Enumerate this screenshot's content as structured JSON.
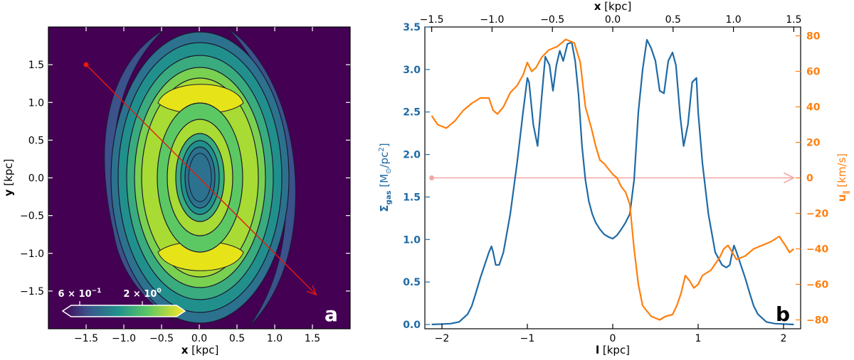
{
  "chart_data": [
    {
      "panel": "a",
      "type": "heatmap",
      "xlabel_var": "x",
      "xlabel_unit": " [kpc]",
      "ylabel_var": "y",
      "ylabel_unit": " [kpc]",
      "xlim": [
        -2.0,
        2.0
      ],
      "ylim": [
        -2.0,
        2.0
      ],
      "xticks": [
        -1.5,
        -1.0,
        -0.5,
        0.0,
        0.5,
        1.0,
        1.5
      ],
      "xticklabels": [
        "−1.5",
        "−1.0",
        "−0.5",
        "0.0",
        "0.5",
        "1.0",
        "1.5"
      ],
      "yticks": [
        1.5,
        1.0,
        0.5,
        0.0,
        -0.5,
        -1.0,
        -1.5
      ],
      "yticklabels": [
        "1.5",
        "1.0",
        "0.5",
        "0.0",
        "−0.5",
        "−1.0",
        "−1.5"
      ],
      "colorbar": {
        "colormap": "viridis",
        "scale": "log",
        "extend": "both",
        "ticks": [
          0.6,
          2.0
        ],
        "ticklabels": [
          {
            "base": "6 × 10",
            "exp": "−1"
          },
          {
            "base": "2 × 10",
            "exp": "0"
          }
        ]
      },
      "arrow": {
        "from": [
          -1.5,
          1.5
        ],
        "to": [
          1.55,
          -1.55
        ],
        "color": "#e8170f"
      },
      "panel_label": "a"
    },
    {
      "panel": "b",
      "type": "line",
      "xlabel": "l",
      "xlabel_unit": " [kpc]",
      "top_xlabel": "x",
      "top_xlabel_unit": " [kpc]",
      "xlim": [
        -2.2,
        2.2
      ],
      "xticks": [
        -2,
        -1,
        0,
        1,
        2
      ],
      "xticklabels": [
        "−2",
        "−1",
        "0",
        "1",
        "2"
      ],
      "top_xticks": [
        -1.5,
        -1.0,
        -0.5,
        0.0,
        0.5,
        1.0,
        1.5
      ],
      "top_xticklabels": [
        "−1.5",
        "−1.0",
        "−0.5",
        "0.0",
        "0.5",
        "1.0",
        "1.5"
      ],
      "left_ylabel_symbol": "Σ",
      "left_ylabel_sub": "gas",
      "left_ylabel_unit_a": " [M",
      "left_ylabel_unit_b": "⊙",
      "left_ylabel_unit_c": "/pc",
      "left_ylabel_unit_d": "2",
      "left_ylabel_unit_e": "]",
      "left_ylim": [
        -0.05,
        3.5
      ],
      "left_yticks": [
        0.0,
        0.5,
        1.0,
        1.5,
        2.0,
        2.5,
        3.0,
        3.5
      ],
      "left_yticklabels": [
        "0.0",
        "0.5",
        "1.0",
        "1.5",
        "2.0",
        "2.5",
        "3.0",
        "3.5"
      ],
      "right_ylabel_symbol": "u",
      "right_ylabel_sub": "∥",
      "right_ylabel_unit": " [km/s]",
      "right_ylim": [
        -85,
        85
      ],
      "right_yticks": [
        -80,
        -60,
        -40,
        -20,
        0,
        20,
        40,
        60,
        80
      ],
      "right_yticklabels": [
        "−80",
        "−60",
        "−40",
        "−20",
        "0",
        "20",
        "40",
        "60",
        "80"
      ],
      "series": [
        {
          "axis": "left",
          "color": "#1f6aa5",
          "x": [
            -2.12,
            -1.9,
            -1.8,
            -1.7,
            -1.65,
            -1.6,
            -1.55,
            -1.5,
            -1.45,
            -1.42,
            -1.4,
            -1.37,
            -1.33,
            -1.28,
            -1.2,
            -1.12,
            -1.05,
            -1.0,
            -0.98,
            -0.93,
            -0.88,
            -0.83,
            -0.79,
            -0.74,
            -0.7,
            -0.66,
            -0.62,
            -0.58,
            -0.53,
            -0.48,
            -0.44,
            -0.4,
            -0.36,
            -0.32,
            -0.28,
            -0.24,
            -0.2,
            -0.15,
            -0.1,
            -0.05,
            0.0,
            0.05,
            0.1,
            0.15,
            0.2,
            0.25,
            0.3,
            0.35,
            0.4,
            0.45,
            0.5,
            0.55,
            0.6,
            0.65,
            0.7,
            0.74,
            0.79,
            0.83,
            0.88,
            0.93,
            0.98,
            1.0,
            1.05,
            1.12,
            1.2,
            1.28,
            1.33,
            1.37,
            1.4,
            1.42,
            1.45,
            1.5,
            1.55,
            1.6,
            1.65,
            1.7,
            1.8,
            1.9,
            2.12
          ],
          "y": [
            0.0,
            0.01,
            0.03,
            0.12,
            0.22,
            0.38,
            0.55,
            0.7,
            0.85,
            0.92,
            0.85,
            0.7,
            0.7,
            0.85,
            1.3,
            1.9,
            2.5,
            2.9,
            2.85,
            2.35,
            2.1,
            2.7,
            3.15,
            3.05,
            2.75,
            3.05,
            3.22,
            3.1,
            3.3,
            3.32,
            3.1,
            2.7,
            2.1,
            1.7,
            1.45,
            1.3,
            1.2,
            1.12,
            1.06,
            1.03,
            1.01,
            1.05,
            1.12,
            1.2,
            1.3,
            1.7,
            2.5,
            3.0,
            3.35,
            3.25,
            3.1,
            2.75,
            2.72,
            3.1,
            3.2,
            3.05,
            2.45,
            2.1,
            2.35,
            2.85,
            2.9,
            2.5,
            1.9,
            1.3,
            0.85,
            0.7,
            0.67,
            0.7,
            0.85,
            0.93,
            0.85,
            0.7,
            0.55,
            0.38,
            0.22,
            0.12,
            0.03,
            0.01,
            0.0
          ]
        },
        {
          "axis": "right",
          "color": "#ff7f0e",
          "x": [
            -2.12,
            -2.05,
            -1.95,
            -1.85,
            -1.75,
            -1.65,
            -1.55,
            -1.45,
            -1.4,
            -1.35,
            -1.28,
            -1.2,
            -1.12,
            -1.05,
            -1.0,
            -0.95,
            -0.9,
            -0.83,
            -0.75,
            -0.65,
            -0.55,
            -0.45,
            -0.38,
            -0.32,
            -0.25,
            -0.2,
            -0.15,
            -0.1,
            -0.05,
            0.0,
            0.05,
            0.1,
            0.15,
            0.2,
            0.25,
            0.3,
            0.35,
            0.45,
            0.55,
            0.62,
            0.7,
            0.75,
            0.8,
            0.85,
            0.9,
            0.95,
            1.0,
            1.05,
            1.15,
            1.25,
            1.3,
            1.35,
            1.4,
            1.45,
            1.55,
            1.65,
            1.75,
            1.85,
            1.95,
            2.02,
            2.07,
            2.12
          ],
          "y": [
            35,
            30,
            28,
            32,
            38,
            42,
            45,
            45,
            38,
            36,
            40,
            48,
            52,
            58,
            65,
            60,
            62,
            68,
            72,
            74,
            78,
            76,
            65,
            40,
            28,
            18,
            10,
            8,
            5,
            2,
            0,
            -5,
            -8,
            -15,
            -40,
            -60,
            -72,
            -78,
            -80,
            -78,
            -77,
            -72,
            -65,
            -55,
            -58,
            -62,
            -60,
            -55,
            -52,
            -45,
            -40,
            -38,
            -42,
            -46,
            -44,
            -40,
            -38,
            -36,
            -33,
            -38,
            -42,
            -40
          ]
        }
      ],
      "reference_arrow": {
        "y_right": 0,
        "color": "#f4a6a6"
      },
      "panel_label": "b"
    }
  ]
}
